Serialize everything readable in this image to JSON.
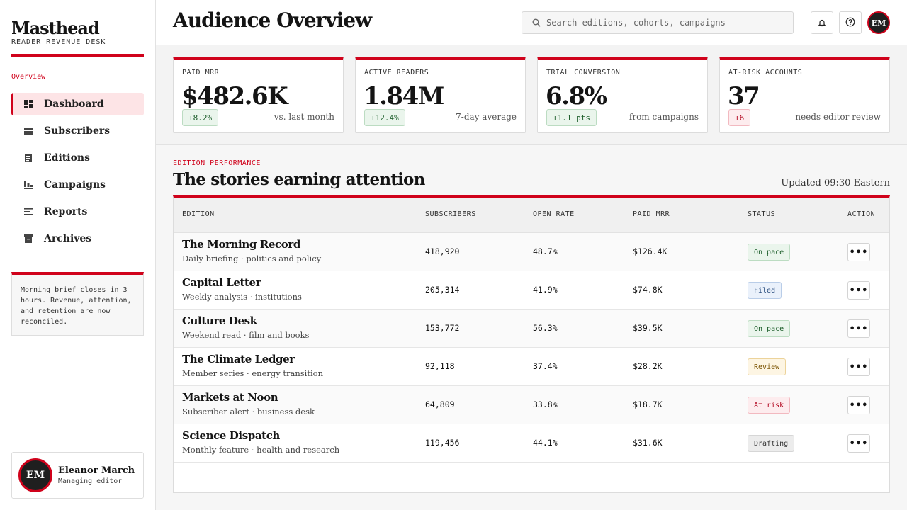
{
  "brand": {
    "name": "Masthead",
    "subtitle": "READER REVENUE DESK"
  },
  "sidebar": {
    "section_label": "Overview",
    "items": [
      {
        "label": "Dashboard",
        "icon": "dashboard-icon",
        "active": true
      },
      {
        "label": "Subscribers",
        "icon": "subscribers-icon",
        "active": false
      },
      {
        "label": "Editions",
        "icon": "editions-icon",
        "active": false
      },
      {
        "label": "Campaigns",
        "icon": "campaigns-icon",
        "active": false
      },
      {
        "label": "Reports",
        "icon": "reports-icon",
        "active": false
      },
      {
        "label": "Archives",
        "icon": "archives-icon",
        "active": false
      }
    ],
    "notice": "Morning brief closes in 3 hours. Revenue, attention, and retention are now reconciled.",
    "user": {
      "initials": "EM",
      "name": "Eleanor March",
      "role": "Managing editor"
    }
  },
  "header": {
    "title": "Audience Overview",
    "search_placeholder": "Search editions, cohorts, campaigns",
    "avatar_initials": "EM"
  },
  "kpis": [
    {
      "label": "PAID MRR",
      "value": "$482.6K",
      "delta": "+8.2%",
      "delta_tone": "good",
      "note": "vs. last month"
    },
    {
      "label": "ACTIVE READERS",
      "value": "1.84M",
      "delta": "+12.4%",
      "delta_tone": "good",
      "note": "7-day average"
    },
    {
      "label": "TRIAL CONVERSION",
      "value": "6.8%",
      "delta": "+1.1 pts",
      "delta_tone": "good",
      "note": "from campaigns"
    },
    {
      "label": "AT-RISK ACCOUNTS",
      "value": "37",
      "delta": "+6",
      "delta_tone": "bad",
      "note": "needs editor review"
    }
  ],
  "section": {
    "eyebrow": "EDITION PERFORMANCE",
    "title": "The stories earning attention",
    "updated": "Updated 09:30 Eastern"
  },
  "table": {
    "columns": [
      "EDITION",
      "SUBSCRIBERS",
      "OPEN RATE",
      "PAID MRR",
      "STATUS",
      "ACTION"
    ],
    "rows": [
      {
        "title": "The Morning Record",
        "subtitle": "Daily briefing · politics and policy",
        "subscribers": "418,920",
        "open_rate": "48.7%",
        "mrr": "$126.4K",
        "status": "On pace",
        "status_tone": "onpace"
      },
      {
        "title": "Capital Letter",
        "subtitle": "Weekly analysis · institutions",
        "subscribers": "205,314",
        "open_rate": "41.9%",
        "mrr": "$74.8K",
        "status": "Filed",
        "status_tone": "filed"
      },
      {
        "title": "Culture Desk",
        "subtitle": "Weekend read · film and books",
        "subscribers": "153,772",
        "open_rate": "56.3%",
        "mrr": "$39.5K",
        "status": "On pace",
        "status_tone": "onpace"
      },
      {
        "title": "The Climate Ledger",
        "subtitle": "Member series · energy transition",
        "subscribers": "92,118",
        "open_rate": "37.4%",
        "mrr": "$28.2K",
        "status": "Review",
        "status_tone": "review"
      },
      {
        "title": "Markets at Noon",
        "subtitle": "Subscriber alert · business desk",
        "subscribers": "64,809",
        "open_rate": "33.8%",
        "mrr": "$18.7K",
        "status": "At risk",
        "status_tone": "atrisk"
      },
      {
        "title": "Science Dispatch",
        "subtitle": "Monthly feature · health and research",
        "subscribers": "119,456",
        "open_rate": "44.1%",
        "mrr": "$31.6K",
        "status": "Drafting",
        "status_tone": "drafting"
      }
    ],
    "action_label": "•••"
  },
  "colors": {
    "accent": "#d0021b",
    "ink": "#141414",
    "surface": "#ffffff",
    "canvas": "#f6f6f6"
  }
}
